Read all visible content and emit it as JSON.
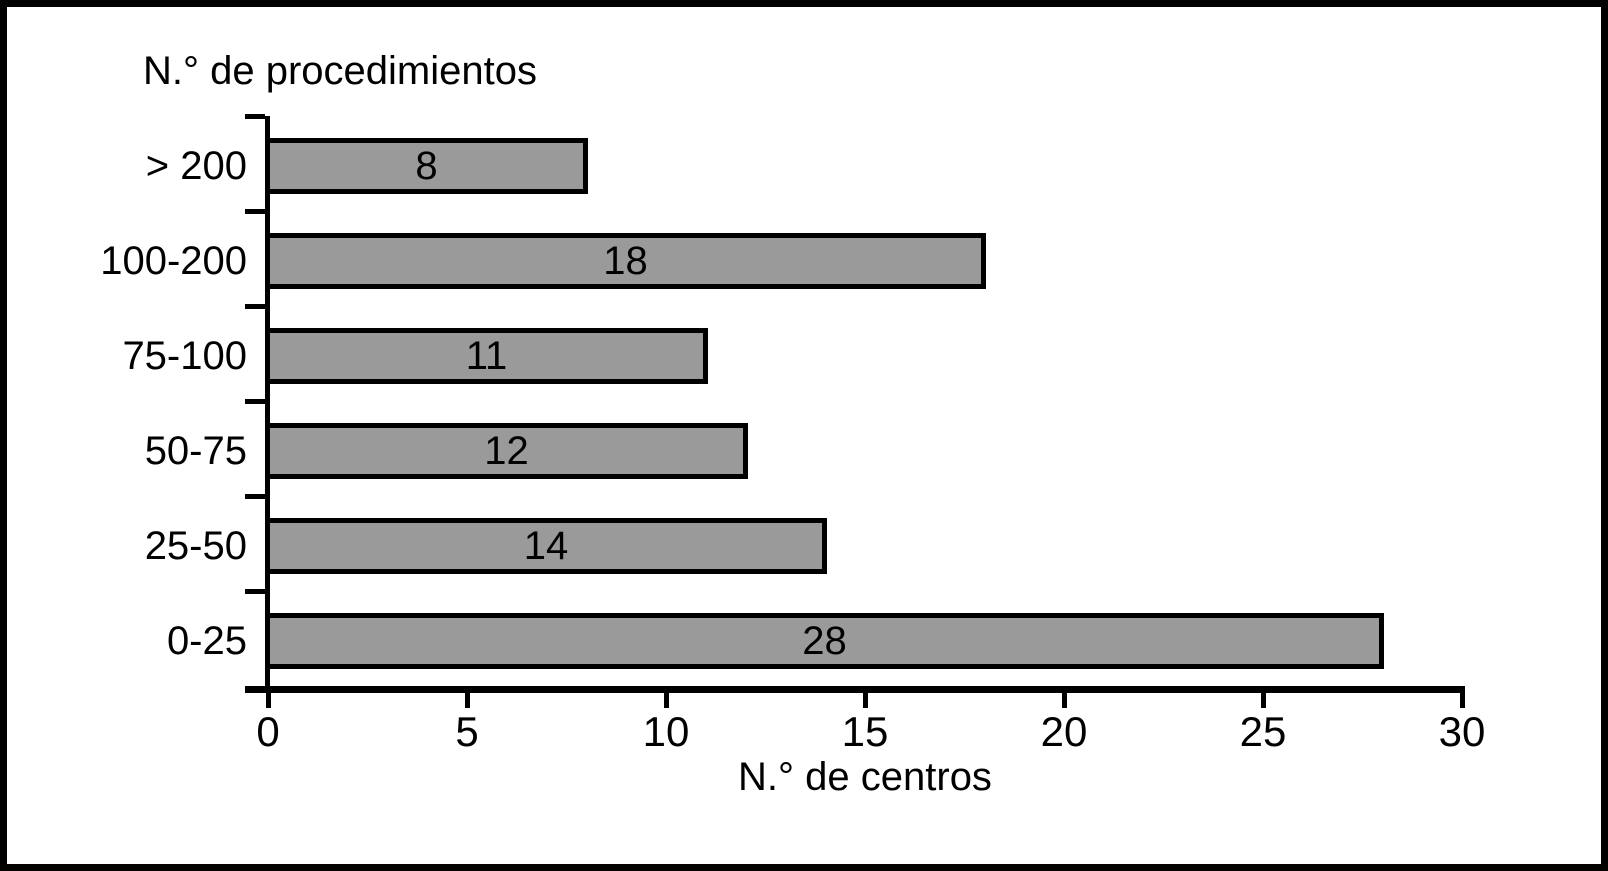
{
  "figure": {
    "background": "#ffffff",
    "frame_color": "#000000"
  },
  "chart_data": {
    "type": "bar",
    "orientation": "horizontal",
    "title": "N.° de procedimientos",
    "xlabel": "N.° de centros",
    "ylabel": "",
    "categories": [
      "> 200",
      "100-200",
      "75-100",
      "50-75",
      "25-50",
      "0-25"
    ],
    "values": [
      8,
      18,
      11,
      12,
      14,
      28
    ],
    "value_labels": [
      "8",
      "18",
      "11",
      "12",
      "14",
      "28"
    ],
    "x_ticks": [
      "0",
      "5",
      "10",
      "15",
      "20",
      "25",
      "30"
    ],
    "xlim": [
      0,
      30
    ],
    "bar_fill": "#9a9a9a",
    "bar_border": "#000000",
    "axis_color": "#000000",
    "grid": false,
    "legend": false,
    "value_label_position": "inside-center"
  }
}
